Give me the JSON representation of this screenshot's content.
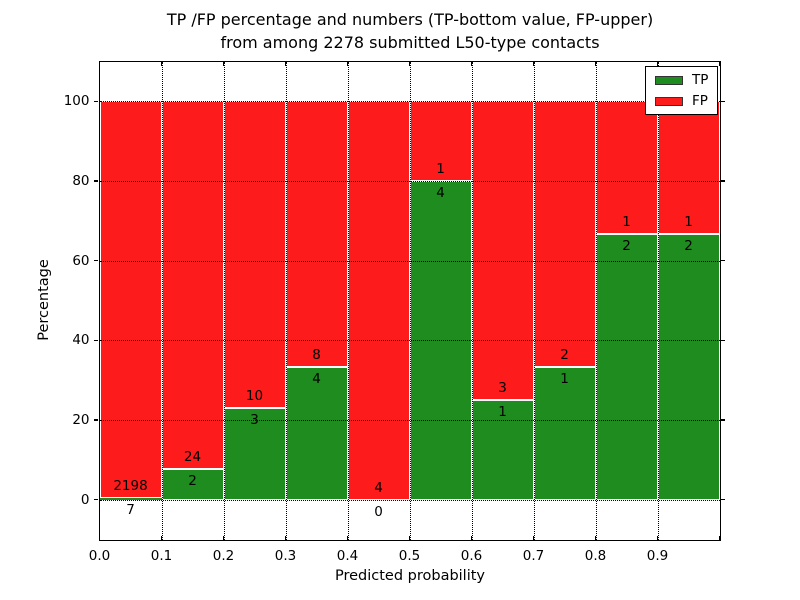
{
  "chart_data": {
    "type": "bar",
    "stacked": true,
    "title_lines": [
      "TP /FP percentage and numbers (TP-bottom value, FP-upper)",
      "from among 2278 submitted L50-type contacts"
    ],
    "xlabel": "Predicted probability",
    "ylabel": "Percentage",
    "xlim": [
      0,
      1
    ],
    "ylim": [
      -10,
      110
    ],
    "yticks": [
      0,
      20,
      40,
      60,
      80,
      100
    ],
    "xticklabels": [
      "0.0",
      "0.1",
      "0.2",
      "0.3",
      "0.4",
      "0.5",
      "0.6",
      "0.7",
      "0.8",
      "0.9"
    ],
    "grid": "dotted black, both axes, drawn above bars",
    "legend_position": "upper right",
    "legend": [
      {
        "label": "TP",
        "color": "#1e8c1e"
      },
      {
        "label": "FP",
        "color": "#fe1b1b"
      }
    ],
    "colors": {
      "tp": "#1e8c1e",
      "fp": "#fe1b1b",
      "bar_edge": "#ffffff"
    },
    "total_submitted": 2278,
    "bins": [
      {
        "range": "0.0-0.1",
        "tp": 7,
        "fp": 2198,
        "tp_percent": 0.32
      },
      {
        "range": "0.1-0.2",
        "tp": 2,
        "fp": 24,
        "tp_percent": 7.69
      },
      {
        "range": "0.2-0.3",
        "tp": 3,
        "fp": 10,
        "tp_percent": 23.08
      },
      {
        "range": "0.3-0.4",
        "tp": 4,
        "fp": 8,
        "tp_percent": 33.33
      },
      {
        "range": "0.4-0.5",
        "tp": 0,
        "fp": 4,
        "tp_percent": 0
      },
      {
        "range": "0.5-0.6",
        "tp": 4,
        "fp": 1,
        "tp_percent": 80
      },
      {
        "range": "0.6-0.7",
        "tp": 1,
        "fp": 3,
        "tp_percent": 25
      },
      {
        "range": "0.7-0.8",
        "tp": 1,
        "fp": 2,
        "tp_percent": 33.33
      },
      {
        "range": "0.8-0.9",
        "tp": 2,
        "fp": 1,
        "tp_percent": 66.67
      },
      {
        "range": "0.9-1.0",
        "tp": 2,
        "fp": 1,
        "tp_percent": 66.67
      }
    ]
  }
}
